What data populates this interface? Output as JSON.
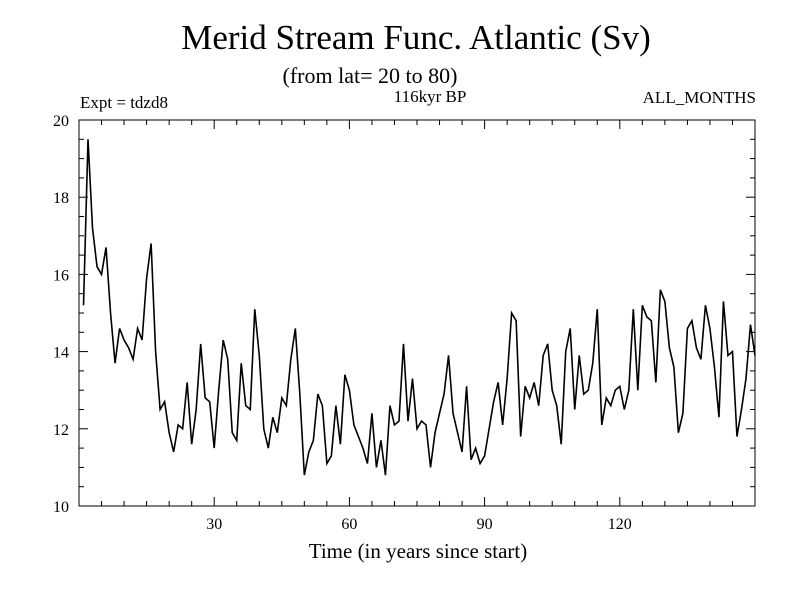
{
  "chart_data": {
    "type": "line",
    "title": "Merid Stream Func. Atlantic (Sv)",
    "subtitle": "(from lat= 20 to 80)",
    "experiment_label": "Expt = tdzd8",
    "period_label": "116kyr BP",
    "months_label": "ALL_MONTHS",
    "xlabel": "Time (in years since start)",
    "ylabel": "",
    "xlim": [
      0,
      150
    ],
    "ylim": [
      10,
      20
    ],
    "x_ticks": [
      30,
      60,
      90,
      120
    ],
    "y_ticks": [
      10,
      12,
      14,
      16,
      18,
      20
    ],
    "x_start": 1,
    "x_step": 1,
    "series": [
      {
        "name": "Merid Stream Func.",
        "color": "#000000",
        "values": [
          15.2,
          19.5,
          17.2,
          16.2,
          16.0,
          16.7,
          15.0,
          13.7,
          14.6,
          14.3,
          14.1,
          13.8,
          14.6,
          14.3,
          15.9,
          16.8,
          14.0,
          12.5,
          12.7,
          11.9,
          11.4,
          12.1,
          12.0,
          13.2,
          11.6,
          12.5,
          14.2,
          12.8,
          12.7,
          11.5,
          13.0,
          14.3,
          13.8,
          11.9,
          11.7,
          13.7,
          12.6,
          12.5,
          15.1,
          13.9,
          12.0,
          11.5,
          12.3,
          11.9,
          12.8,
          12.6,
          13.8,
          14.6,
          12.9,
          10.8,
          11.4,
          11.7,
          12.9,
          12.6,
          11.1,
          11.3,
          12.6,
          11.6,
          13.4,
          13.0,
          12.1,
          11.8,
          11.5,
          11.1,
          12.4,
          11.0,
          11.7,
          10.8,
          12.6,
          12.1,
          12.2,
          14.2,
          12.2,
          13.3,
          12.0,
          12.2,
          12.1,
          11.0,
          11.9,
          12.4,
          12.9,
          13.9,
          12.4,
          11.9,
          11.4,
          13.1,
          11.2,
          11.5,
          11.1,
          11.3,
          12.0,
          12.7,
          13.2,
          12.1,
          13.3,
          15.0,
          14.8,
          11.8,
          13.1,
          12.8,
          13.2,
          12.6,
          13.9,
          14.2,
          13.0,
          12.6,
          11.6,
          14.0,
          14.6,
          12.5,
          13.9,
          12.9,
          13.0,
          13.7,
          15.1,
          12.1,
          12.8,
          12.6,
          13.0,
          13.1,
          12.5,
          13.0,
          15.1,
          13.0,
          15.2,
          14.9,
          14.8,
          13.2,
          15.6,
          15.3,
          14.1,
          13.6,
          11.9,
          12.4,
          14.6,
          14.8,
          14.1,
          13.8,
          15.2,
          14.6,
          13.6,
          12.3,
          15.3,
          13.9,
          14.0,
          11.8,
          12.5,
          13.3,
          14.7,
          13.9
        ]
      }
    ]
  }
}
